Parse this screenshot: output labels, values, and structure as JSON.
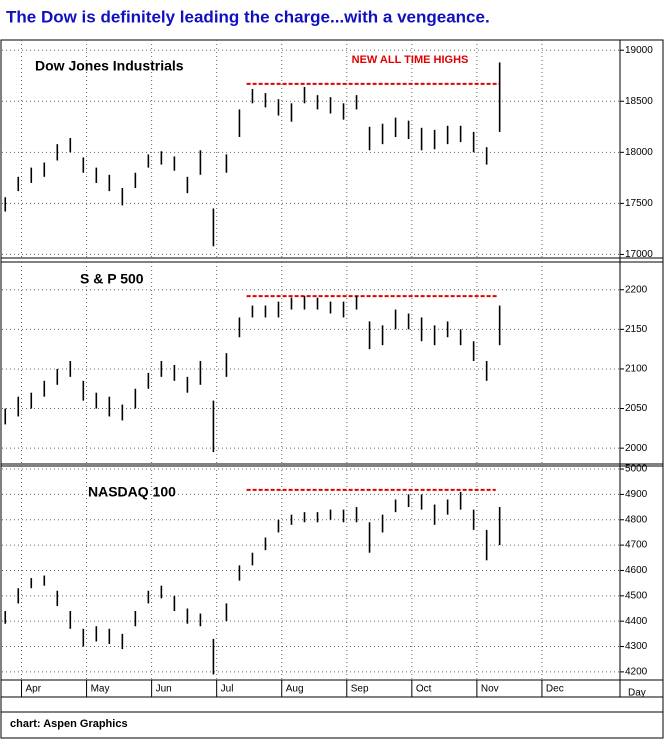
{
  "title": "The Dow is definitely leading the charge...with a vengeance.",
  "footer": "chart: Aspen Graphics",
  "chart_data": [
    {
      "type": "hilo",
      "label": "Dow Jones Industrials",
      "annotation": "NEW ALL TIME HIGHS",
      "color": "#000000",
      "grid": true,
      "ylim": [
        16965,
        19100
      ],
      "yticks": [
        17000,
        17500,
        18000,
        18500,
        19000
      ],
      "x": [
        3.75,
        3.95,
        4.15,
        4.35,
        4.55,
        4.75,
        4.95,
        5.15,
        5.35,
        5.55,
        5.75,
        5.95,
        6.15,
        6.35,
        6.55,
        6.75,
        6.95,
        7.15,
        7.35,
        7.55,
        7.75,
        7.95,
        8.15,
        8.35,
        8.55,
        8.75,
        8.95,
        9.15,
        9.35,
        9.55,
        9.75,
        9.95,
        10.15,
        10.35,
        10.55,
        10.75,
        10.95,
        11.15,
        11.35
      ],
      "high": [
        17560,
        17760,
        17850,
        17900,
        18080,
        18140,
        17950,
        17850,
        17780,
        17650,
        17800,
        17980,
        18010,
        17960,
        17760,
        18020,
        17450,
        17980,
        18420,
        18620,
        18580,
        18520,
        18480,
        18640,
        18560,
        18540,
        18480,
        18560,
        18250,
        18280,
        18340,
        18310,
        18240,
        18220,
        18260,
        18260,
        18200,
        18050,
        18880
      ],
      "low": [
        17420,
        17620,
        17700,
        17760,
        17920,
        18000,
        17800,
        17700,
        17620,
        17480,
        17650,
        17850,
        17880,
        17820,
        17600,
        17780,
        17080,
        17800,
        18150,
        18480,
        18440,
        18360,
        18300,
        18480,
        18420,
        18380,
        18320,
        18420,
        18020,
        18080,
        18150,
        18130,
        18020,
        18030,
        18080,
        18100,
        18000,
        17880,
        18200
      ],
      "reference_line": {
        "value": 18670,
        "x": [
          7.46,
          11.34
        ],
        "color": "#e00000"
      }
    },
    {
      "type": "hilo",
      "label": "S & P 500",
      "color": "#000000",
      "grid": true,
      "ylim": [
        1980,
        2235
      ],
      "yticks": [
        2000,
        2050,
        2100,
        2150,
        2200
      ],
      "x": [
        3.75,
        3.95,
        4.15,
        4.35,
        4.55,
        4.75,
        4.95,
        5.15,
        5.35,
        5.55,
        5.75,
        5.95,
        6.15,
        6.35,
        6.55,
        6.75,
        6.95,
        7.15,
        7.35,
        7.55,
        7.75,
        7.95,
        8.15,
        8.35,
        8.55,
        8.75,
        8.95,
        9.15,
        9.35,
        9.55,
        9.75,
        9.95,
        10.15,
        10.35,
        10.55,
        10.75,
        10.95,
        11.15,
        11.35
      ],
      "high": [
        2050,
        2065,
        2070,
        2085,
        2100,
        2110,
        2085,
        2070,
        2065,
        2055,
        2075,
        2095,
        2110,
        2105,
        2090,
        2110,
        2060,
        2120,
        2165,
        2180,
        2180,
        2185,
        2190,
        2192,
        2190,
        2185,
        2185,
        2192,
        2160,
        2155,
        2175,
        2170,
        2165,
        2155,
        2160,
        2150,
        2135,
        2110,
        2180
      ],
      "low": [
        2030,
        2040,
        2050,
        2065,
        2080,
        2090,
        2060,
        2050,
        2040,
        2035,
        2050,
        2075,
        2090,
        2085,
        2070,
        2080,
        1995,
        2090,
        2140,
        2165,
        2165,
        2165,
        2175,
        2175,
        2175,
        2170,
        2165,
        2175,
        2125,
        2130,
        2150,
        2150,
        2135,
        2130,
        2140,
        2130,
        2110,
        2085,
        2130
      ],
      "reference_line": {
        "value": 2192,
        "x": [
          7.46,
          11.32
        ],
        "color": "#e00000"
      }
    },
    {
      "type": "hilo",
      "label": "NASDAQ 100",
      "color": "#000000",
      "grid": true,
      "ylim": [
        4168,
        5012
      ],
      "yticks": [
        4200,
        4300,
        4400,
        4500,
        4600,
        4700,
        4800,
        4900,
        5000
      ],
      "x": [
        3.75,
        3.95,
        4.15,
        4.35,
        4.55,
        4.75,
        4.95,
        5.15,
        5.35,
        5.55,
        5.75,
        5.95,
        6.15,
        6.35,
        6.55,
        6.75,
        6.95,
        7.15,
        7.35,
        7.55,
        7.75,
        7.95,
        8.15,
        8.35,
        8.55,
        8.75,
        8.95,
        9.15,
        9.35,
        9.55,
        9.75,
        9.95,
        10.15,
        10.35,
        10.55,
        10.75,
        10.95,
        11.15,
        11.35
      ],
      "high": [
        4440,
        4530,
        4570,
        4580,
        4520,
        4440,
        4370,
        4380,
        4370,
        4350,
        4440,
        4520,
        4540,
        4500,
        4450,
        4430,
        4330,
        4470,
        4620,
        4670,
        4730,
        4800,
        4820,
        4830,
        4830,
        4840,
        4840,
        4850,
        4790,
        4820,
        4880,
        4900,
        4900,
        4860,
        4880,
        4910,
        4840,
        4760,
        4850
      ],
      "low": [
        4390,
        4470,
        4530,
        4540,
        4460,
        4370,
        4300,
        4320,
        4310,
        4290,
        4380,
        4470,
        4490,
        4440,
        4390,
        4380,
        4190,
        4400,
        4560,
        4620,
        4680,
        4750,
        4780,
        4790,
        4790,
        4800,
        4790,
        4790,
        4670,
        4750,
        4830,
        4850,
        4840,
        4780,
        4820,
        4840,
        4760,
        4640,
        4700
      ],
      "reference_line": {
        "value": 4918,
        "x": [
          7.46,
          11.29
        ],
        "color": "#e00000"
      },
      "xlim": [
        3.7,
        13.2
      ],
      "x_label": "Day",
      "xticks": [
        {
          "value": 4,
          "label": "Apr"
        },
        {
          "value": 5,
          "label": "May"
        },
        {
          "value": 6,
          "label": "Jun"
        },
        {
          "value": 7,
          "label": "Jul"
        },
        {
          "value": 8,
          "label": "Aug"
        },
        {
          "value": 9,
          "label": "Sep"
        },
        {
          "value": 10,
          "label": "Oct"
        },
        {
          "value": 11,
          "label": "Nov"
        },
        {
          "value": 12,
          "label": "Dec"
        }
      ]
    }
  ]
}
